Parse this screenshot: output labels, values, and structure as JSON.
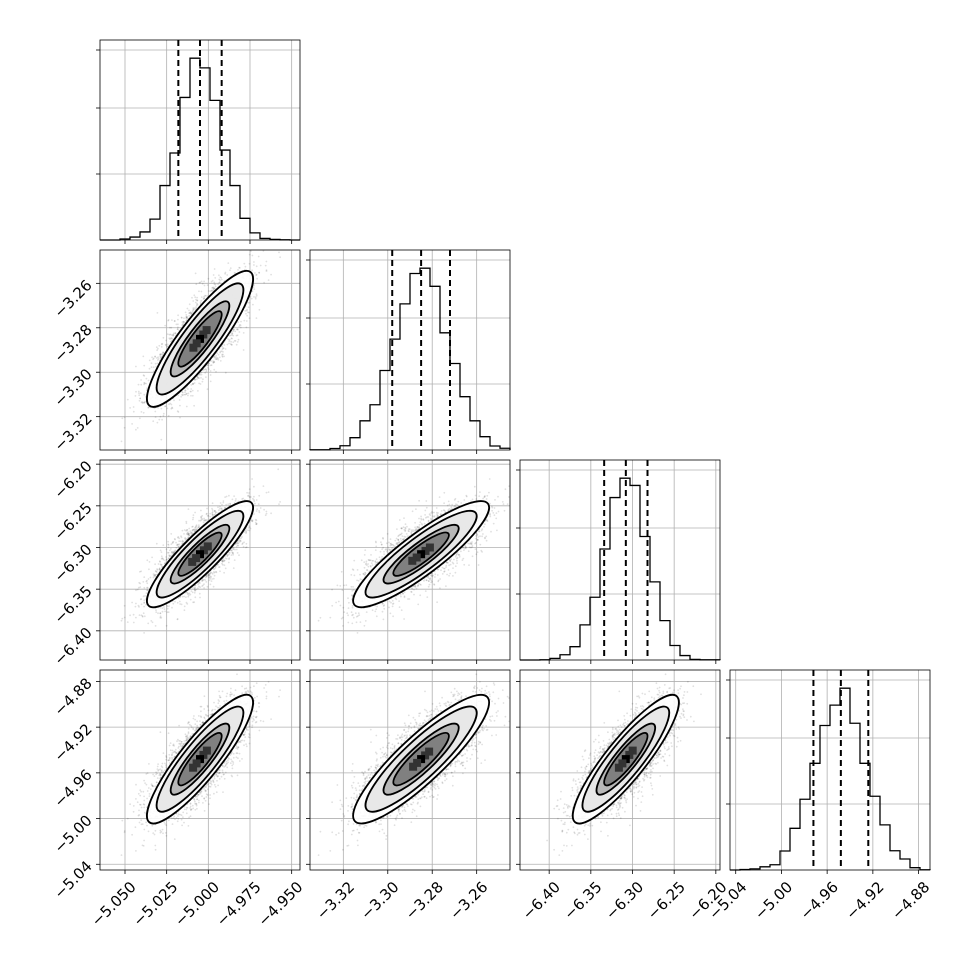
{
  "chart_data": {
    "type": "corner",
    "n_params": 4,
    "params": [
      {
        "mean": -5.005,
        "sd": 0.013,
        "range": [
          -5.065,
          -4.945
        ],
        "ticks": [
          -5.05,
          -5.025,
          -5.0,
          -4.975,
          -4.95
        ],
        "tick_labels": [
          "−5.050",
          "−5.025",
          "−5.000",
          "−4.975",
          "−4.950"
        ],
        "quantiles": [
          -5.018,
          -5.005,
          -4.992
        ]
      },
      {
        "mean": -3.285,
        "sd": 0.0125,
        "range": [
          -3.335,
          -3.245
        ],
        "ticks": [
          -3.32,
          -3.3,
          -3.28,
          -3.26
        ],
        "tick_labels": [
          "−3.32",
          "−3.30",
          "−3.28",
          "−3.26"
        ],
        "quantiles": [
          -3.298,
          -3.285,
          -3.272
        ]
      },
      {
        "mean": -6.308,
        "sd": 0.026,
        "range": [
          -6.435,
          -6.195
        ],
        "ticks": [
          -6.4,
          -6.35,
          -6.3,
          -6.25,
          -6.2
        ],
        "tick_labels": [
          "−6.40",
          "−6.35",
          "−6.30",
          "−6.25",
          "−6.20"
        ],
        "quantiles": [
          -6.334,
          -6.308,
          -6.282
        ]
      },
      {
        "mean": -4.948,
        "sd": 0.023,
        "range": [
          -5.045,
          -4.87
        ],
        "ticks": [
          -5.04,
          -5.0,
          -4.96,
          -4.92,
          -4.88
        ],
        "tick_labels": [
          "−5.04",
          "−5.00",
          "−4.96",
          "−4.92",
          "−4.88"
        ],
        "quantiles": [
          -4.972,
          -4.948,
          -4.924
        ]
      }
    ],
    "correlation": 0.88,
    "n_samples": 5000,
    "grid": true,
    "title": "",
    "xlabel": "",
    "ylabel": ""
  }
}
